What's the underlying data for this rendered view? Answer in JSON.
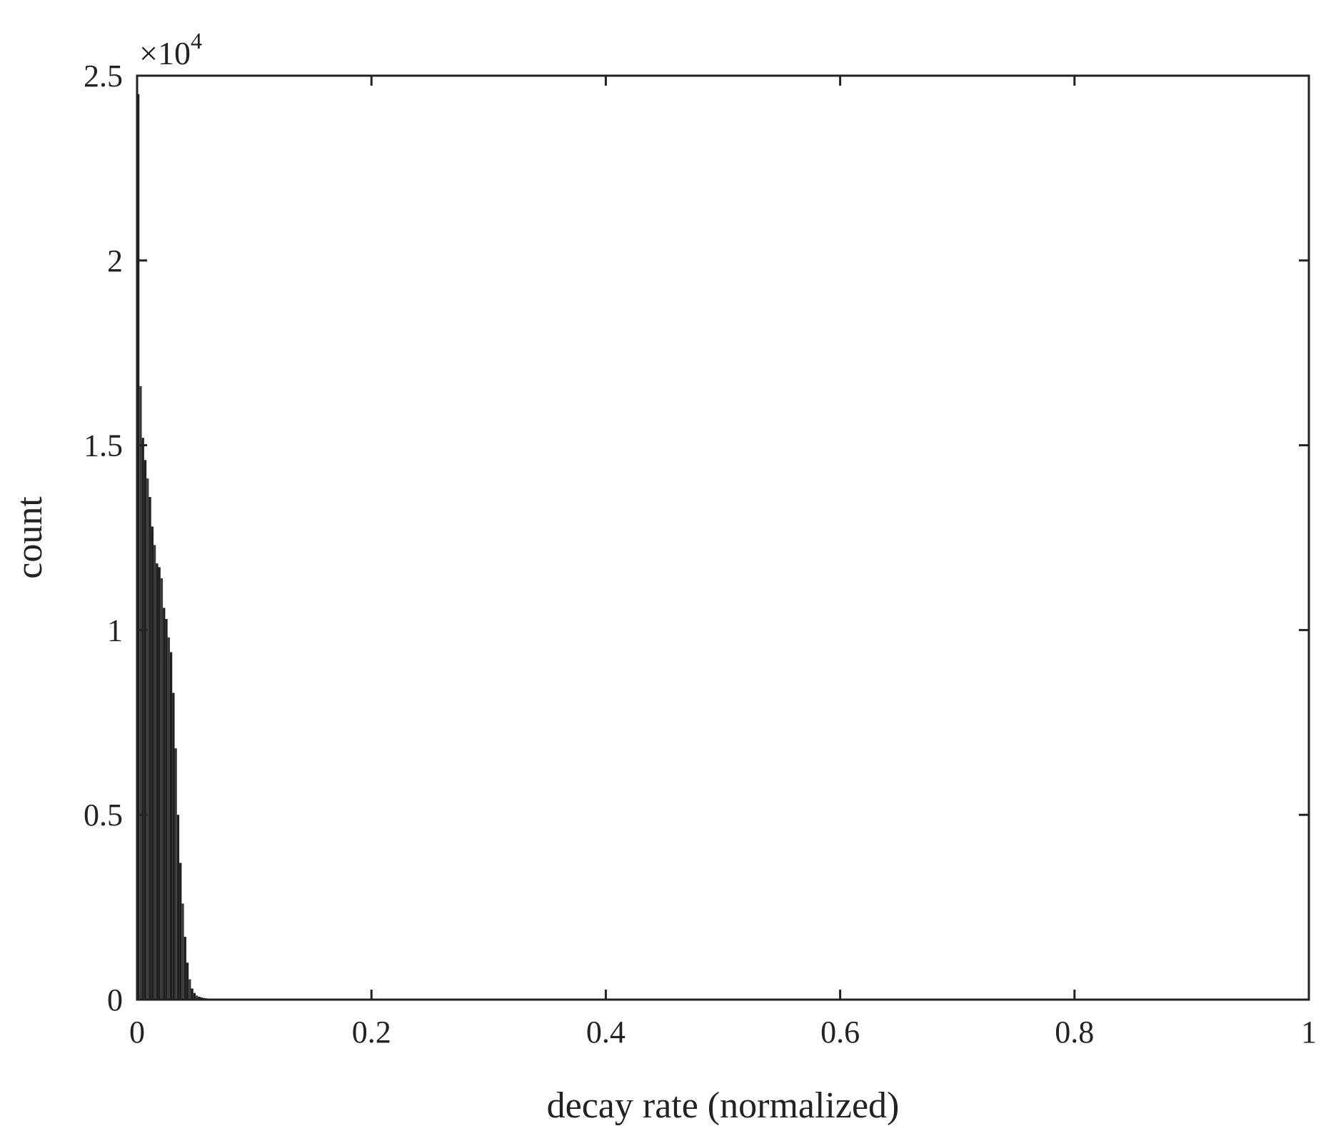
{
  "chart_data": {
    "type": "bar",
    "title": "",
    "xlabel": "decay rate (normalized)",
    "ylabel": "count",
    "xlim": [
      0,
      1
    ],
    "ylim": [
      0,
      25000
    ],
    "y_multiplier": {
      "base": "×10",
      "exponent": "4"
    },
    "xticks": [
      {
        "value": 0,
        "label": "0"
      },
      {
        "value": 0.2,
        "label": "0.2"
      },
      {
        "value": 0.4,
        "label": "0.4"
      },
      {
        "value": 0.6,
        "label": "0.6"
      },
      {
        "value": 0.8,
        "label": "0.8"
      },
      {
        "value": 1,
        "label": "1"
      }
    ],
    "yticks": [
      {
        "value": 0,
        "label": "0"
      },
      {
        "value": 5000,
        "label": "0.5"
      },
      {
        "value": 10000,
        "label": "1"
      },
      {
        "value": 15000,
        "label": "1.5"
      },
      {
        "value": 20000,
        "label": "2"
      },
      {
        "value": 25000,
        "label": "2.5"
      }
    ],
    "grid": false,
    "legend": "none",
    "bin_width": 0.002,
    "bar_color": "#1f1f1f",
    "bins": [
      {
        "x": 0.0,
        "count": 24500
      },
      {
        "x": 0.002,
        "count": 16600
      },
      {
        "x": 0.004,
        "count": 15200
      },
      {
        "x": 0.006,
        "count": 14600
      },
      {
        "x": 0.008,
        "count": 14100
      },
      {
        "x": 0.01,
        "count": 13600
      },
      {
        "x": 0.012,
        "count": 12800
      },
      {
        "x": 0.014,
        "count": 12300
      },
      {
        "x": 0.016,
        "count": 11800
      },
      {
        "x": 0.018,
        "count": 11700
      },
      {
        "x": 0.02,
        "count": 11400
      },
      {
        "x": 0.022,
        "count": 10600
      },
      {
        "x": 0.024,
        "count": 10300
      },
      {
        "x": 0.026,
        "count": 9800
      },
      {
        "x": 0.028,
        "count": 9400
      },
      {
        "x": 0.03,
        "count": 8300
      },
      {
        "x": 0.032,
        "count": 6800
      },
      {
        "x": 0.034,
        "count": 5000
      },
      {
        "x": 0.036,
        "count": 3700
      },
      {
        "x": 0.038,
        "count": 2600
      },
      {
        "x": 0.04,
        "count": 1700
      },
      {
        "x": 0.042,
        "count": 1000
      },
      {
        "x": 0.044,
        "count": 550
      },
      {
        "x": 0.046,
        "count": 300
      },
      {
        "x": 0.048,
        "count": 180
      },
      {
        "x": 0.05,
        "count": 110
      },
      {
        "x": 0.052,
        "count": 80
      },
      {
        "x": 0.054,
        "count": 60
      },
      {
        "x": 0.056,
        "count": 45
      },
      {
        "x": 0.058,
        "count": 35
      },
      {
        "x": 0.06,
        "count": 25
      },
      {
        "x": 0.062,
        "count": 20
      },
      {
        "x": 0.064,
        "count": 15
      },
      {
        "x": 0.066,
        "count": 10
      }
    ]
  }
}
